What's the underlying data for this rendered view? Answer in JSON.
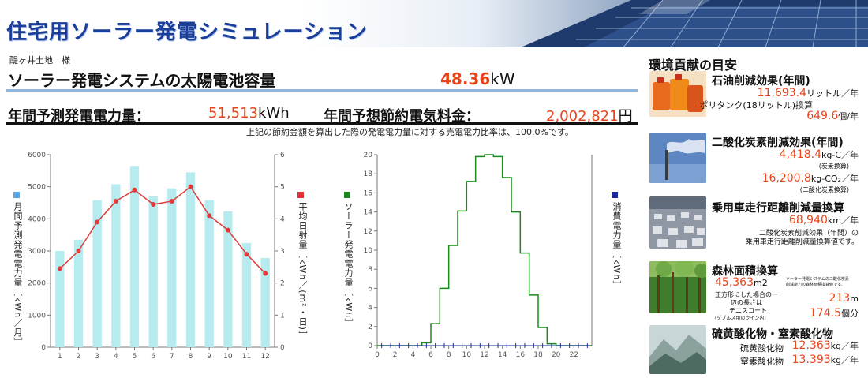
{
  "header": {
    "title": "住宅用ソーラー発電シミュレーション"
  },
  "owner": "醍ヶ井土地　様",
  "capacity": {
    "label": "ソーラー発電システムの太陽電池容量",
    "value": "48.36",
    "unit": "kW"
  },
  "annual_generation": {
    "label": "年間予測発電電力量：",
    "value": "51,513",
    "unit": "kWh"
  },
  "annual_savings": {
    "label": "年間予想節約電気料金：",
    "value": "2,002,821",
    "unit": "円"
  },
  "note": "上記の節約金額を算出した際の発電電力量に対する売電電力比率は、100.0%です。",
  "chart1": {
    "left_label": "月間予測発電電力量［kWh／月］",
    "right_label": "平均日射量［kWh／(m²・日)］"
  },
  "chart2": {
    "left_label": "ソーラー発電電力量［kWh］",
    "right_label": "消費電力量［kWh］"
  },
  "chart_data": [
    {
      "type": "bar",
      "categories": [
        "1",
        "2",
        "3",
        "4",
        "5",
        "6",
        "7",
        "8",
        "9",
        "10",
        "11",
        "12"
      ],
      "series": [
        {
          "name": "月間予測発電電力量",
          "type": "bar",
          "values": [
            3000,
            3350,
            4580,
            5080,
            5650,
            4700,
            4950,
            5450,
            4580,
            4230,
            3250,
            2780
          ]
        },
        {
          "name": "平均日射量",
          "type": "line",
          "values": [
            2.45,
            3.0,
            3.9,
            4.55,
            4.9,
            4.45,
            4.55,
            5.0,
            4.1,
            3.65,
            2.9,
            2.3
          ]
        }
      ],
      "ylim": [
        0,
        6000
      ],
      "y2lim": [
        0,
        6
      ],
      "yticks": [
        "0",
        "1000",
        "2000",
        "3000",
        "4000",
        "5000",
        "6000"
      ],
      "y2ticks": [
        "0",
        "1",
        "2",
        "3",
        "4",
        "5",
        "6"
      ],
      "colors": {
        "bars": "#b6ecef",
        "line": "#e03a3a",
        "legend_left": "#5aa7e8",
        "legend_right": "#e53030"
      }
    },
    {
      "type": "line",
      "x": [
        0,
        1,
        2,
        3,
        4,
        5,
        6,
        7,
        8,
        9,
        10,
        11,
        12,
        13,
        14,
        15,
        16,
        17,
        18,
        19,
        20,
        21,
        22,
        23
      ],
      "series": [
        {
          "name": "ソーラー発電電力量",
          "step": true,
          "values": [
            0,
            0,
            0,
            0,
            0,
            0.3,
            2.3,
            6.0,
            10.5,
            14.1,
            17.2,
            19.8,
            20.0,
            19.8,
            17.6,
            14.0,
            9.7,
            5.3,
            1.9,
            0.2,
            0,
            0,
            0,
            0
          ]
        },
        {
          "name": "消費電力量",
          "values": [
            0,
            0,
            0,
            0,
            0,
            0,
            0,
            0,
            0,
            0,
            0,
            0,
            0,
            0,
            0,
            0,
            0,
            0,
            0,
            0,
            0,
            0,
            0,
            0
          ]
        }
      ],
      "xticks": [
        "0",
        "2",
        "4",
        "6",
        "8",
        "10",
        "12",
        "14",
        "16",
        "18",
        "20",
        "22"
      ],
      "yticks": [
        "0",
        "2",
        "4",
        "6",
        "8",
        "10",
        "12",
        "14",
        "16",
        "18",
        "20"
      ],
      "ylim": [
        0,
        20
      ],
      "colors": {
        "solar": "#1a8a1a",
        "consumption": "#1a2aa0"
      }
    }
  ],
  "sidebar": {
    "title": "環境貢献の目安",
    "oil": {
      "title": "石油削減効果(年間)",
      "value1": "11,693.4",
      "unit1": "リットル／年",
      "sub": "ポリタンク(18リットル)換算",
      "value2": "649.6",
      "unit2": "個/年"
    },
    "co2": {
      "title": "二酸化炭素削減効果(年間)",
      "value1": "4,418.4",
      "unit1": "kg-C／年",
      "sub1": "(炭素換算)",
      "value2": "16,200.8",
      "unit2": "kg-CO₂／年",
      "sub2": "(二酸化炭素換算)"
    },
    "car": {
      "title": "乗用車走行距離削減量換算",
      "value": "68,940",
      "unit": "km／年",
      "note1": "二酸化炭素削減効果（年間）の",
      "note2": "乗用車走行距離削減量換算値です。"
    },
    "forest": {
      "title": "森林面積換算",
      "value": "45,363",
      "unit": "m2",
      "tiny1": "ソーラー発電システムの二酸化炭素",
      "tiny2": "削減能力の森林面積換算値です。",
      "side1": "正方形にした場合の一",
      "side2": "辺の長さは",
      "side_value": "213",
      "side_unit": "m",
      "court1": "テニスコート",
      "court2": "(ダブルス用のライン内)",
      "court_value": "174.5",
      "court_unit": "個分"
    },
    "sox": {
      "title": "硫黄酸化物・窒素酸化物",
      "s_label": "硫黄酸化物",
      "s_value": "12.363",
      "s_unit": "kg／年",
      "n_label": "窒素酸化物",
      "n_value": "13.393",
      "n_unit": "kg／年"
    }
  }
}
